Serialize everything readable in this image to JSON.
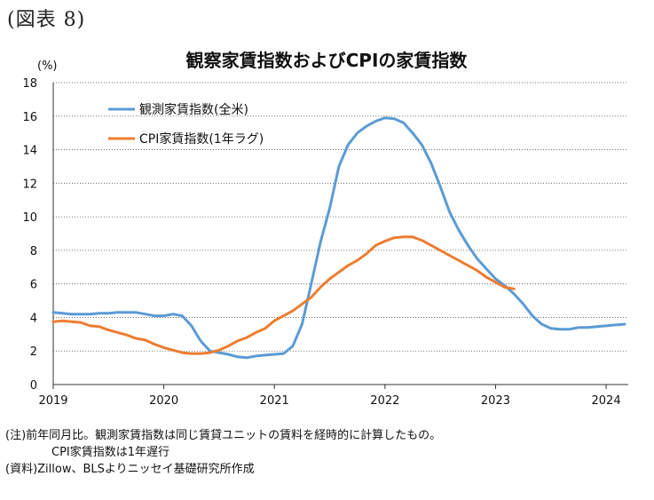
{
  "figure_label": "(図表 8)",
  "notes": {
    "line1": "(注)前年同月比。観測家賃指数は同じ賃貸ユニットの賃料を経時的に計算したもの。",
    "line2": "CPI家賃指数は1年遅行",
    "line3": "(資料)Zillow、BLSよりニッセイ基礎研究所作成"
  },
  "chart_data": {
    "type": "line",
    "title": "観察家賃指数およびCPIの家賃指数",
    "ylabel": "(%)",
    "ylim": [
      0,
      18
    ],
    "yticks": [
      "0",
      "2",
      "4",
      "6",
      "8",
      "10",
      "12",
      "14",
      "16",
      "18"
    ],
    "xlim": [
      2019.0,
      2024.2
    ],
    "xticks": [
      "2019",
      "2020",
      "2021",
      "2022",
      "2023",
      "2024"
    ],
    "grid": "horizontal dotted",
    "legend_position": "top-left",
    "series": [
      {
        "name": "観測家賃指数(全米)",
        "color": "#5b9bd5",
        "x": [
          2019.0,
          2019.083,
          2019.167,
          2019.25,
          2019.333,
          2019.417,
          2019.5,
          2019.583,
          2019.667,
          2019.75,
          2019.833,
          2019.917,
          2020.0,
          2020.083,
          2020.167,
          2020.25,
          2020.333,
          2020.417,
          2020.5,
          2020.583,
          2020.667,
          2020.75,
          2020.833,
          2020.917,
          2021.0,
          2021.083,
          2021.167,
          2021.25,
          2021.333,
          2021.417,
          2021.5,
          2021.583,
          2021.667,
          2021.75,
          2021.833,
          2021.917,
          2022.0,
          2022.083,
          2022.167,
          2022.25,
          2022.333,
          2022.417,
          2022.5,
          2022.583,
          2022.667,
          2022.75,
          2022.833,
          2022.917,
          2023.0,
          2023.083,
          2023.167,
          2023.25,
          2023.333,
          2023.417,
          2023.5,
          2023.583,
          2023.667,
          2023.75,
          2023.833,
          2023.917,
          2024.0,
          2024.083,
          2024.167
        ],
        "values": [
          4.3,
          4.25,
          4.2,
          4.2,
          4.2,
          4.25,
          4.25,
          4.3,
          4.3,
          4.3,
          4.2,
          4.1,
          4.1,
          4.2,
          4.1,
          3.5,
          2.6,
          2.0,
          1.9,
          1.8,
          1.65,
          1.6,
          1.7,
          1.75,
          1.8,
          1.85,
          2.3,
          3.6,
          6.0,
          8.5,
          10.5,
          13.0,
          14.3,
          15.0,
          15.4,
          15.7,
          15.9,
          15.85,
          15.6,
          15.0,
          14.3,
          13.2,
          11.8,
          10.3,
          9.2,
          8.3,
          7.5,
          6.9,
          6.3,
          5.9,
          5.4,
          4.8,
          4.1,
          3.6,
          3.35,
          3.3,
          3.3,
          3.4,
          3.4,
          3.45,
          3.5,
          3.55,
          3.6
        ]
      },
      {
        "name": "CPI家賃指数(1年ラグ)",
        "color": "#ed7d31",
        "x": [
          2019.0,
          2019.083,
          2019.167,
          2019.25,
          2019.333,
          2019.417,
          2019.5,
          2019.583,
          2019.667,
          2019.75,
          2019.833,
          2019.917,
          2020.0,
          2020.083,
          2020.167,
          2020.25,
          2020.333,
          2020.417,
          2020.5,
          2020.583,
          2020.667,
          2020.75,
          2020.833,
          2020.917,
          2021.0,
          2021.083,
          2021.167,
          2021.25,
          2021.333,
          2021.417,
          2021.5,
          2021.583,
          2021.667,
          2021.75,
          2021.833,
          2021.917,
          2022.0,
          2022.083,
          2022.167,
          2022.25,
          2022.333,
          2022.417,
          2022.5,
          2022.583,
          2022.667,
          2022.75,
          2022.833,
          2022.917,
          2023.0,
          2023.083,
          2023.167
        ],
        "values": [
          3.75,
          3.8,
          3.75,
          3.7,
          3.5,
          3.45,
          3.25,
          3.1,
          2.95,
          2.75,
          2.65,
          2.4,
          2.2,
          2.05,
          1.9,
          1.85,
          1.85,
          1.9,
          2.05,
          2.3,
          2.6,
          2.8,
          3.1,
          3.35,
          3.8,
          4.1,
          4.4,
          4.8,
          5.2,
          5.8,
          6.3,
          6.7,
          7.1,
          7.4,
          7.8,
          8.3,
          8.55,
          8.75,
          8.8,
          8.8,
          8.6,
          8.3,
          8.0,
          7.7,
          7.4,
          7.1,
          6.8,
          6.4,
          6.1,
          5.8,
          5.7
        ]
      }
    ]
  }
}
